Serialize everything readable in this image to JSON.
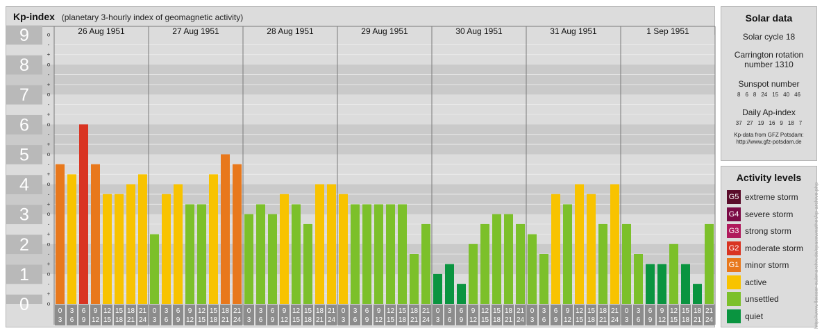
{
  "header": {
    "title": "Kp-index",
    "subtitle": "(planetary 3-hourly index of geomagnetic activity)"
  },
  "solar": {
    "title": "Solar data",
    "solar_cycle": "Solar cycle 18",
    "carrington_line1": "Carrington rotation",
    "carrington_line2": "number 1310",
    "sunspot_label": "Sunspot number",
    "sunspot_numbers": [
      "8",
      "6",
      "8",
      "24",
      "15",
      "40",
      "46"
    ],
    "ap_label": "Daily Ap-index",
    "ap_numbers": [
      "37",
      "27",
      "19",
      "16",
      "9",
      "18",
      "7"
    ],
    "credit_line1": "Kp-data from GFZ Potsdam:",
    "credit_line2": "http://www.gfz-potsdam.de"
  },
  "activity": {
    "title": "Activity levels",
    "levels": [
      {
        "code": "G5",
        "label": "extreme storm",
        "color": "#5a0c2a"
      },
      {
        "code": "G4",
        "label": "severe storm",
        "color": "#7a0a45"
      },
      {
        "code": "G3",
        "label": "strong storm",
        "color": "#b01a5c"
      },
      {
        "code": "G2",
        "label": "moderate storm",
        "color": "#d93422"
      },
      {
        "code": "G1",
        "label": "minor storm",
        "color": "#e8781c"
      },
      {
        "code": "",
        "label": "active",
        "color": "#f8c300"
      },
      {
        "code": "",
        "label": "unsettled",
        "color": "#7cc02a"
      },
      {
        "code": "",
        "label": "quiet",
        "color": "#0a9440"
      }
    ]
  },
  "watermark": "http://www.fleisser-eulenarchiv.de/spaceweather/kp-archive.php",
  "chart_data": {
    "type": "bar",
    "days": [
      "26 Aug 1951",
      "27 Aug 1951",
      "28 Aug 1951",
      "29 Aug 1951",
      "30 Aug 1951",
      "31 Aug 1951",
      "1 Sep 1951"
    ],
    "interval_starts": [
      "0",
      "3",
      "6",
      "9",
      "12",
      "15",
      "18",
      "21"
    ],
    "interval_ends": [
      "3",
      "6",
      "9",
      "12",
      "15",
      "18",
      "21",
      "24"
    ],
    "y_major_labels": [
      "0",
      "1",
      "2",
      "3",
      "4",
      "5",
      "6",
      "7",
      "8",
      "9"
    ],
    "y_minor_labels": [
      "o",
      "+",
      "-"
    ],
    "ylim": [
      0,
      9
    ],
    "values": [
      [
        4.67,
        4.33,
        6.0,
        4.67,
        3.67,
        3.67,
        4.0,
        4.33
      ],
      [
        2.33,
        3.67,
        4.0,
        3.33,
        3.33,
        4.33,
        5.0,
        4.67
      ],
      [
        3.0,
        3.33,
        3.0,
        3.67,
        3.33,
        2.67,
        4.0,
        4.0
      ],
      [
        3.67,
        3.33,
        3.33,
        3.33,
        3.33,
        3.33,
        1.67,
        2.67
      ],
      [
        1.0,
        1.33,
        0.67,
        2.0,
        2.67,
        3.0,
        3.0,
        2.67
      ],
      [
        2.33,
        1.67,
        3.67,
        3.33,
        4.0,
        3.67,
        2.67,
        4.0
      ],
      [
        2.67,
        1.67,
        1.33,
        1.33,
        2.0,
        1.33,
        0.67,
        2.67
      ]
    ]
  }
}
